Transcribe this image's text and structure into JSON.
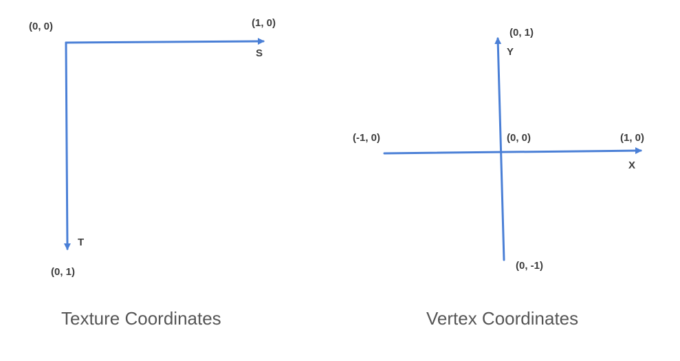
{
  "colors": {
    "axis": "#4a7fd6",
    "label_text": "#3c3c3c",
    "caption_text": "#555555",
    "background": "#ffffff"
  },
  "texture": {
    "caption": "Texture Coordinates",
    "origin_label": "(0, 0)",
    "s_end_label": "(1, 0)",
    "s_axis_letter": "S",
    "t_end_label": "(0, 1)",
    "t_axis_letter": "T"
  },
  "vertex": {
    "caption": "Vertex Coordinates",
    "origin_label": "(0, 0)",
    "x_pos_label": "(1, 0)",
    "x_neg_label": "(-1, 0)",
    "x_axis_letter": "X",
    "y_pos_label": "(0, 1)",
    "y_neg_label": "(0, -1)",
    "y_axis_letter": "Y"
  }
}
